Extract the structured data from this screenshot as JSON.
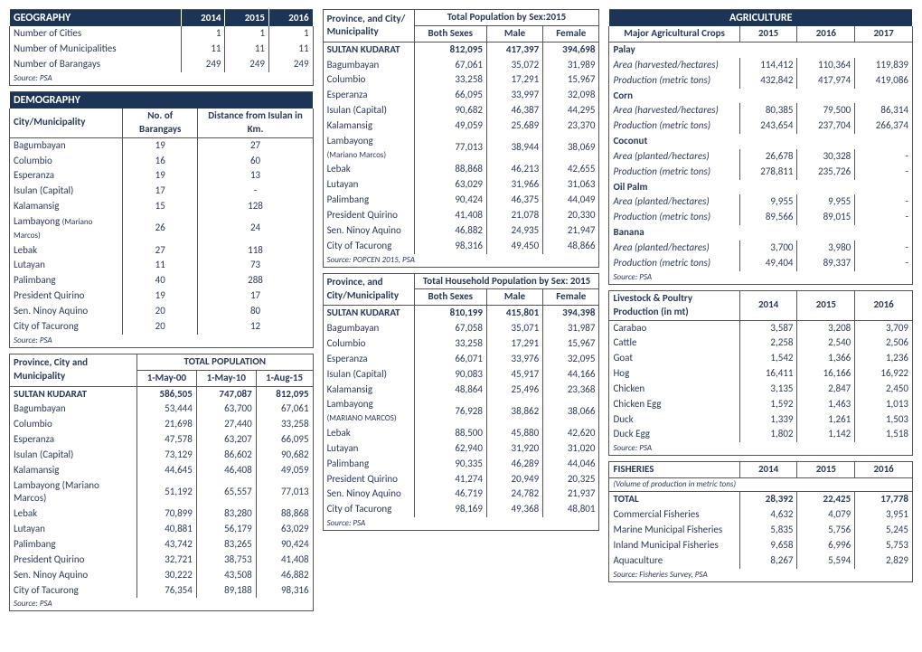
{
  "geography": {
    "title": "GEOGRAPHY",
    "years": [
      "2014",
      "2015",
      "2016"
    ],
    "rows": [
      {
        "label": "Number of Cities",
        "v": [
          "1",
          "1",
          "1"
        ]
      },
      {
        "label": "Number of Municipalities",
        "v": [
          "11",
          "11",
          "11"
        ]
      },
      {
        "label": "Number of Barangays",
        "v": [
          "249",
          "249",
          "249"
        ]
      }
    ],
    "source": "Source: PSA"
  },
  "demography": {
    "title": "DEMOGRAPHY",
    "h1": "City/Municipality",
    "h2": "No. of Barangays",
    "h3": "Distance from Isulan in Km.",
    "rows": [
      {
        "n": "Bagumbayan",
        "b": "19",
        "d": "27"
      },
      {
        "n": "Columbio",
        "b": "16",
        "d": "60"
      },
      {
        "n": "Esperanza",
        "b": "19",
        "d": "13"
      },
      {
        "n": "Isulan (Capital)",
        "b": "17",
        "d": "-"
      },
      {
        "n": "Kalamansig",
        "b": "15",
        "d": "128"
      },
      {
        "n": "Lambayong (Mariano Marcos)",
        "b": "26",
        "d": "24",
        "small": true
      },
      {
        "n": "Lebak",
        "b": "27",
        "d": "118"
      },
      {
        "n": "Lutayan",
        "b": "11",
        "d": "73"
      },
      {
        "n": "Palimbang",
        "b": "40",
        "d": "288"
      },
      {
        "n": "President Quirino",
        "b": "19",
        "d": "17"
      },
      {
        "n": "Sen. Ninoy Aquino",
        "b": "20",
        "d": "80"
      },
      {
        "n": "City of Tacurong",
        "b": "20",
        "d": "12"
      }
    ],
    "source": "Source: PSA"
  },
  "totalpop": {
    "h1": "Province, City and Municipality",
    "h2": "TOTAL POPULATION",
    "dates": [
      "1-May-00",
      "1-May-10",
      "1-Aug-15"
    ],
    "rows": [
      {
        "n": "SULTAN KUDARAT",
        "v": [
          "586,505",
          "747,087",
          "812,095"
        ],
        "bold": true
      },
      {
        "n": "Bagumbayan",
        "v": [
          "53,444",
          "63,700",
          "67,061"
        ]
      },
      {
        "n": "Columbio",
        "v": [
          "21,698",
          "27,440",
          "33,258"
        ]
      },
      {
        "n": "Esperanza",
        "v": [
          "47,578",
          "63,207",
          "66,095"
        ]
      },
      {
        "n": "Isulan (Capital)",
        "v": [
          "73,129",
          "86,602",
          "90,682"
        ]
      },
      {
        "n": "Kalamansig",
        "v": [
          "44,645",
          "46,408",
          "49,059"
        ]
      },
      {
        "n": "Lambayong (Mariano Marcos)",
        "v": [
          "51,192",
          "65,557",
          "77,013"
        ]
      },
      {
        "n": "Lebak",
        "v": [
          "70,899",
          "83,280",
          "88,868"
        ]
      },
      {
        "n": "Lutayan",
        "v": [
          "40,881",
          "56,179",
          "63,029"
        ]
      },
      {
        "n": "Palimbang",
        "v": [
          "43,742",
          "83,265",
          "90,424"
        ]
      },
      {
        "n": "President Quirino",
        "v": [
          "32,721",
          "38,753",
          "41,408"
        ]
      },
      {
        "n": "Sen. Ninoy Aquino",
        "v": [
          "30,222",
          "43,508",
          "46,882"
        ]
      },
      {
        "n": "City of Tacurong",
        "v": [
          "76,354",
          "89,188",
          "98,316"
        ]
      }
    ],
    "source": "Source: PSA"
  },
  "popsex": {
    "h1": "Province, and City/ Municipality",
    "h2": "Total Population by Sex:2015",
    "cols": [
      "Both Sexes",
      "Male",
      "Female"
    ],
    "rows": [
      {
        "n": "SULTAN KUDARAT",
        "v": [
          "812,095",
          "417,397",
          "394,698"
        ],
        "bold": true
      },
      {
        "n": "Bagumbayan",
        "v": [
          "67,061",
          "35,072",
          "31,989"
        ]
      },
      {
        "n": "Columbio",
        "v": [
          "33,258",
          "17,291",
          "15,967"
        ]
      },
      {
        "n": "Esperanza",
        "v": [
          "66,095",
          "33,997",
          "32,098"
        ]
      },
      {
        "n": "Isulan (Capital)",
        "v": [
          "90,682",
          "46,387",
          "44,295"
        ]
      },
      {
        "n": "Kalamansig",
        "v": [
          "49,059",
          "25,689",
          "23,370"
        ]
      },
      {
        "n": "Lambayong",
        "n2": "(Mariano Marcos)",
        "v": [
          "77,013",
          "38,944",
          "38,069"
        ]
      },
      {
        "n": "Lebak",
        "v": [
          "88,868",
          "46,213",
          "42,655"
        ]
      },
      {
        "n": "Lutayan",
        "v": [
          "63,029",
          "31,966",
          "31,063"
        ]
      },
      {
        "n": "Palimbang",
        "v": [
          "90,424",
          "46,375",
          "44,049"
        ]
      },
      {
        "n": "President Quirino",
        "v": [
          "41,408",
          "21,078",
          "20,330"
        ]
      },
      {
        "n": "Sen. Ninoy Aquino",
        "v": [
          "46,882",
          "24,935",
          "21,947"
        ]
      },
      {
        "n": "City of Tacurong",
        "v": [
          "98,316",
          "49,450",
          "48,866"
        ]
      }
    ],
    "source": "Source: POPCEN 2015, PSA"
  },
  "hhpop": {
    "h1": "Province, and City/Municipality",
    "h2": "Total Household Population by Sex: 2015",
    "cols": [
      "Both Sexes",
      "Male",
      "Female"
    ],
    "rows": [
      {
        "n": "SULTAN KUDARAT",
        "v": [
          "810,199",
          "415,801",
          "394,398"
        ],
        "bold": true
      },
      {
        "n": "Bagumbayan",
        "v": [
          "67,058",
          "35,071",
          "31,987"
        ]
      },
      {
        "n": "Columbio",
        "v": [
          "33,258",
          "17,291",
          "15,967"
        ]
      },
      {
        "n": "Esperanza",
        "v": [
          "66,071",
          "33,976",
          "32,095"
        ]
      },
      {
        "n": "Isulan (Capital)",
        "v": [
          "90,083",
          "45,917",
          "44,166"
        ]
      },
      {
        "n": "Kalamansig",
        "v": [
          "48,864",
          "25,496",
          "23,368"
        ]
      },
      {
        "n": "Lambayong",
        "n2": "(MARIANO MARCOS)",
        "v": [
          "76,928",
          "38,862",
          "38,066"
        ]
      },
      {
        "n": "Lebak",
        "v": [
          "88,500",
          "45,880",
          "42,620"
        ]
      },
      {
        "n": "Lutayan",
        "v": [
          "62,940",
          "31,920",
          "31,020"
        ]
      },
      {
        "n": "Palimbang",
        "v": [
          "90,335",
          "46,289",
          "44,046"
        ]
      },
      {
        "n": "President Quirino",
        "v": [
          "41,274",
          "20,949",
          "20,325"
        ]
      },
      {
        "n": "Sen. Ninoy Aquino",
        "v": [
          "46,719",
          "24,782",
          "21,937"
        ]
      },
      {
        "n": "City of Tacurong",
        "v": [
          "98,169",
          "49,368",
          "48,801"
        ]
      }
    ],
    "source": "Source: PSA"
  },
  "agri": {
    "title": "AGRICULTURE",
    "h1": "Major Agricultural Crops",
    "years": [
      "2015",
      "2016",
      "2017"
    ],
    "groups": [
      {
        "name": "Palay",
        "rows": [
          {
            "l": "Area (harvested/hectares)",
            "v": [
              "114,412",
              "110,364",
              "119,839"
            ],
            "ital": true
          },
          {
            "l": "Production (metric tons)",
            "v": [
              "432,842",
              "417,974",
              "419,086"
            ],
            "ital": true
          }
        ]
      },
      {
        "name": "Corn",
        "rows": [
          {
            "l": "Area (harvested/hectares)",
            "v": [
              "80,385",
              "79,500",
              "86,314"
            ],
            "ital": true
          },
          {
            "l": "Production (metric tons)",
            "v": [
              "243,654",
              "237,704",
              "266,374"
            ],
            "ital": true
          }
        ]
      },
      {
        "name": "Coconut",
        "rows": [
          {
            "l": "Area (planted/hectares)",
            "v": [
              "26,678",
              "30,328",
              "-"
            ],
            "ital": true
          },
          {
            "l": "Production (metric tons)",
            "v": [
              "278,811",
              "235,726",
              "-"
            ],
            "ital": true
          }
        ]
      },
      {
        "name": "Oil Palm",
        "rows": [
          {
            "l": "Area (planted/hectares)",
            "v": [
              "9,955",
              "9,955",
              "-"
            ],
            "ital": true
          },
          {
            "l": "Production (metric tons)",
            "v": [
              "89,566",
              "89,015",
              "-"
            ],
            "ital": true
          }
        ]
      },
      {
        "name": "Banana",
        "rows": [
          {
            "l": " Area (planted/hectares)",
            "v": [
              "3,700",
              "3,980",
              "-"
            ],
            "ital": true
          },
          {
            "l": "Production (metric tons)",
            "v": [
              "49,404",
              "89,337",
              "-"
            ],
            "ital": true
          }
        ]
      }
    ],
    "source": "Source: PSA"
  },
  "livestock": {
    "h1": "Livestock & Poultry Production (in mt)",
    "years": [
      "2014",
      "2015",
      "2016"
    ],
    "rows": [
      {
        "n": "Carabao",
        "v": [
          "3,587",
          "3,208",
          "3,709"
        ]
      },
      {
        "n": "Cattle",
        "v": [
          "2,258",
          "2,540",
          "2,506"
        ]
      },
      {
        "n": "Goat",
        "v": [
          "1,542",
          "1,366",
          "1,236"
        ]
      },
      {
        "n": "Hog",
        "v": [
          "16,411",
          "16,166",
          "16,922"
        ]
      },
      {
        "n": "Chicken",
        "v": [
          "3,135",
          "2,847",
          "2,450"
        ]
      },
      {
        "n": "Chicken Egg",
        "v": [
          "1,592",
          "1,463",
          "1,013"
        ]
      },
      {
        "n": "Duck",
        "v": [
          "1,339",
          "1,261",
          "1,503"
        ]
      },
      {
        "n": "Duck Egg",
        "v": [
          "1,802",
          "1,142",
          "1,518"
        ]
      }
    ],
    "source": "Source: PSA"
  },
  "fisheries": {
    "title": "FISHERIES",
    "subtitle": "(Volume of production in metric tons)",
    "years": [
      "2014",
      "2015",
      "2016"
    ],
    "rows": [
      {
        "n": "TOTAL",
        "v": [
          "28,392",
          "22,425",
          "17,778"
        ],
        "bold": true
      },
      {
        "n": "Commercial Fisheries",
        "v": [
          "4,632",
          "4,079",
          "3,951"
        ]
      },
      {
        "n": "Marine Municipal Fisheries",
        "v": [
          "5,835",
          "5,756",
          "5,245"
        ]
      },
      {
        "n": "Inland Municipal Fisheries",
        "v": [
          "9,658",
          "6,996",
          "5,753"
        ]
      },
      {
        "n": "Aquaculture",
        "v": [
          "8,267",
          "5,594",
          "2,829"
        ]
      }
    ],
    "source": "Source: Fisheries Survey, PSA"
  }
}
